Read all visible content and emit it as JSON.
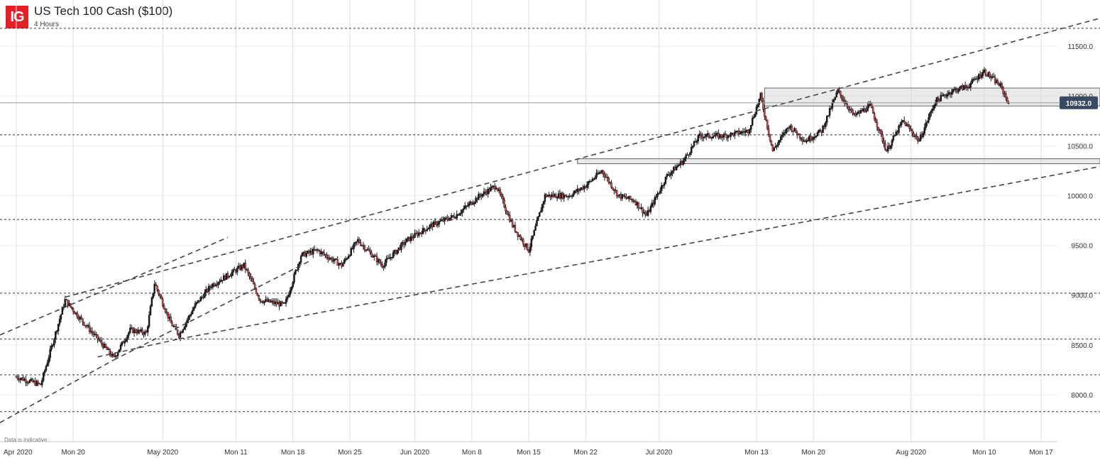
{
  "header": {
    "logo_text": "IG",
    "title": "US Tech 100 Cash ($100)",
    "subtitle": "4 Hours"
  },
  "disclaimer": "Data is indicative",
  "chart_data": {
    "type": "candlestick",
    "title": "US Tech 100 Cash ($100)",
    "timeframe": "4 Hours",
    "ylim": [
      7650,
      11950
    ],
    "y_ticks": [
      8000,
      8500,
      9000,
      9500,
      10000,
      10500,
      11000,
      11500
    ],
    "y_tick_labels": [
      "8000.0",
      "8500.0",
      "9000.0",
      "9500.0",
      "10000.0",
      "10500.0",
      "11000.0",
      "11500.0"
    ],
    "x_ticks": [
      "Apr 2020",
      "Mon 20",
      "May 2020",
      "Mon 11",
      "Mon 18",
      "Mon 25",
      "Jun 2020",
      "Mon 8",
      "Mon 15",
      "Mon 22",
      "Jul 2020",
      "Mon 13",
      "Mon 20",
      "Aug 2020",
      "Mon 10",
      "Mon 17"
    ],
    "x_tick_day_index": [
      0,
      7,
      18,
      27,
      34,
      41,
      49,
      56,
      63,
      70,
      79,
      91,
      98,
      110,
      119,
      126
    ],
    "x_range_days": [
      -2,
      128
    ],
    "current_price": 10932.0,
    "current_price_label": "10932.0",
    "key_points": [
      {
        "d": 0,
        "p": 8180
      },
      {
        "d": 3,
        "p": 8100
      },
      {
        "d": 6,
        "p": 8950
      },
      {
        "d": 7.5,
        "p": 8800
      },
      {
        "d": 12,
        "p": 8370
      },
      {
        "d": 14,
        "p": 8650
      },
      {
        "d": 16,
        "p": 8620
      },
      {
        "d": 17,
        "p": 9120
      },
      {
        "d": 19,
        "p": 8720
      },
      {
        "d": 20,
        "p": 8600
      },
      {
        "d": 22,
        "p": 8900
      },
      {
        "d": 24,
        "p": 9100
      },
      {
        "d": 26,
        "p": 9200
      },
      {
        "d": 28,
        "p": 9300
      },
      {
        "d": 30,
        "p": 8950
      },
      {
        "d": 33,
        "p": 8900
      },
      {
        "d": 35,
        "p": 9400
      },
      {
        "d": 37,
        "p": 9450
      },
      {
        "d": 40,
        "p": 9300
      },
      {
        "d": 42,
        "p": 9550
      },
      {
        "d": 45,
        "p": 9300
      },
      {
        "d": 48,
        "p": 9550
      },
      {
        "d": 51,
        "p": 9700
      },
      {
        "d": 54,
        "p": 9800
      },
      {
        "d": 57,
        "p": 10000
      },
      {
        "d": 59,
        "p": 10100
      },
      {
        "d": 61,
        "p": 9700
      },
      {
        "d": 63,
        "p": 9450
      },
      {
        "d": 65,
        "p": 10000
      },
      {
        "d": 68,
        "p": 10000
      },
      {
        "d": 70,
        "p": 10100
      },
      {
        "d": 72,
        "p": 10250
      },
      {
        "d": 74,
        "p": 10000
      },
      {
        "d": 76,
        "p": 9950
      },
      {
        "d": 77.5,
        "p": 9800
      },
      {
        "d": 80,
        "p": 10200
      },
      {
        "d": 82,
        "p": 10350
      },
      {
        "d": 84,
        "p": 10600
      },
      {
        "d": 87,
        "p": 10600
      },
      {
        "d": 90,
        "p": 10650
      },
      {
        "d": 91.5,
        "p": 11000
      },
      {
        "d": 93,
        "p": 10450
      },
      {
        "d": 95,
        "p": 10700
      },
      {
        "d": 97,
        "p": 10550
      },
      {
        "d": 99,
        "p": 10650
      },
      {
        "d": 101,
        "p": 11050
      },
      {
        "d": 103,
        "p": 10800
      },
      {
        "d": 105,
        "p": 10900
      },
      {
        "d": 107,
        "p": 10450
      },
      {
        "d": 109,
        "p": 10750
      },
      {
        "d": 111,
        "p": 10550
      },
      {
        "d": 113,
        "p": 10950
      },
      {
        "d": 115,
        "p": 11050
      },
      {
        "d": 117,
        "p": 11100
      },
      {
        "d": 119,
        "p": 11250
      },
      {
        "d": 121,
        "p": 11100
      },
      {
        "d": 122,
        "p": 10932
      }
    ],
    "horizontal_levels": [
      11680,
      10610,
      9760,
      9020,
      8560,
      8200,
      7830
    ],
    "zones": [
      {
        "d_start": 92,
        "p_low": 10900,
        "p_high": 11080
      },
      {
        "d_start": 69,
        "p_low": 10320,
        "p_high": 10370
      }
    ],
    "trendlines": [
      {
        "d1": -2,
        "p1": 8600,
        "d2": 26,
        "p2": 9580
      },
      {
        "d1": -2,
        "p1": 7720,
        "d2": 12,
        "p2": 8350
      },
      {
        "d1": 12,
        "p1": 8350,
        "d2": 36,
        "p2": 9340
      },
      {
        "d1": 10,
        "p1": 8380,
        "d2": 20,
        "p2": 8560
      },
      {
        "d1": 20,
        "p1": 8560,
        "d2": 156,
        "p2": 10640
      },
      {
        "d1": 6,
        "p1": 8980,
        "d2": 140,
        "p2": 11930
      }
    ]
  }
}
